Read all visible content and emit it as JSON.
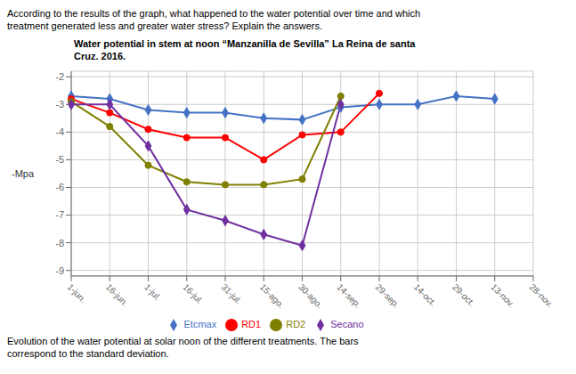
{
  "chart_data": {
    "type": "line",
    "title": "Water potential in stem at noon “Manzanilla de Sevilla” La Reina de santa\nCruz. 2016.",
    "annotations": [
      "According to the results of the graph, what happened to the water potential over time and which\ntreatment generated less and greater water stress? Explain the answers.",
      "Evolution of the water potential at solar noon of the different treatments. The bars\ncorrespond to the standard deviation."
    ],
    "ylabel": "-Mpa",
    "categories": [
      "1-jun.",
      "16-jun.",
      "1-jul.",
      "16-jul.",
      "31-jul.",
      "15-ago.",
      "30-ago.",
      "14-sep.",
      "29-sep.",
      "14-oct.",
      "29-oct.",
      "13-nov.",
      "28-nov."
    ],
    "series": [
      {
        "name": "Etcmax",
        "color": "#4472C4",
        "marker": "diamond",
        "values": [
          -2.7,
          -2.8,
          -3.2,
          -3.3,
          -3.3,
          -3.5,
          -3.55,
          -3.1,
          -3.0,
          -3.0,
          -2.7,
          -2.8,
          null
        ]
      },
      {
        "name": "RD1",
        "color": "#FF0000",
        "marker": "circle",
        "values": [
          -2.8,
          -3.3,
          -3.9,
          -4.2,
          -4.2,
          -5.0,
          -4.1,
          -4.0,
          -2.6,
          null,
          null,
          null,
          null
        ]
      },
      {
        "name": "RD2",
        "color": "#7F7F00",
        "marker": "circle",
        "values": [
          -2.9,
          -3.8,
          -5.2,
          -5.8,
          -5.9,
          -5.9,
          -5.7,
          -2.7,
          null,
          null,
          null,
          null,
          null
        ]
      },
      {
        "name": "Secano",
        "color": "#7030A0",
        "marker": "diamond",
        "values": [
          -3.0,
          -3.0,
          -4.5,
          -6.8,
          -7.2,
          -7.7,
          -8.1,
          -3.0,
          null,
          null,
          null,
          null,
          null
        ]
      }
    ],
    "ylim": [
      -9.2,
      -1.8
    ],
    "yticks": [
      -9,
      -8,
      -7,
      -6,
      -5,
      -4,
      -3,
      -2
    ],
    "grid": true,
    "legend": "bottom"
  }
}
